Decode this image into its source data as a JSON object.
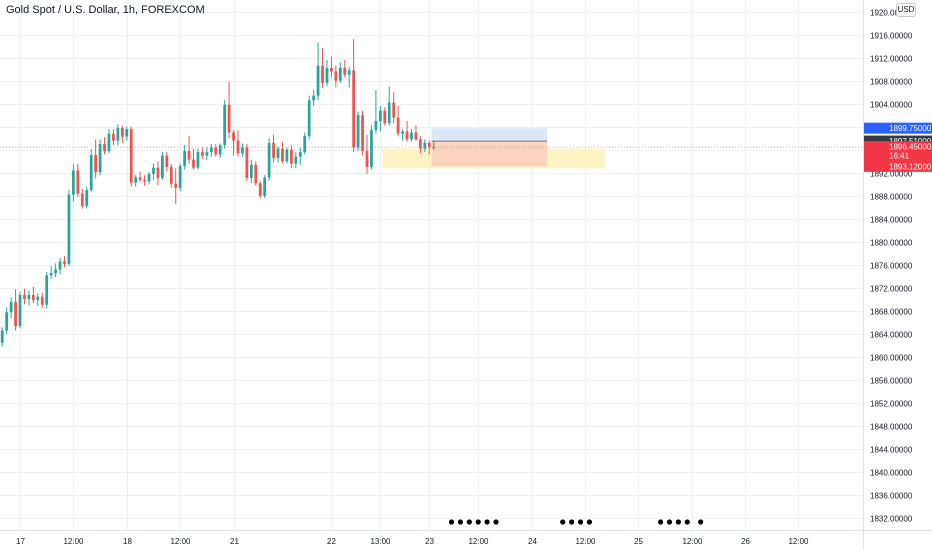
{
  "header": {
    "title": "Gold Spot / U.S. Dollar, 1h, FOREXCOM",
    "currency": "USD"
  },
  "colors": {
    "up": "#26a69a",
    "down": "#ef5350",
    "grid": "#eef0f3",
    "text": "#131722",
    "zone_yellow": "#fff3c4",
    "zone_blue": "#dde7fb",
    "zone_red": "#fbd4bf",
    "label_blue": "#2962ff",
    "label_dark": "#363a45",
    "label_red": "#f23645",
    "event_blue": "#3b6fd8",
    "event_orange": "#f5a623"
  },
  "chart_data": {
    "type": "candlestick",
    "ylim": [
      1830.0,
      1922.0
    ],
    "y_ticks": [
      "1920.00000",
      "1916.00000",
      "1912.00000",
      "1908.00000",
      "1904.00000",
      "1900.00000",
      "1896.00000",
      "1892.00000",
      "1888.00000",
      "1884.00000",
      "1880.00000",
      "1876.00000",
      "1872.00000",
      "1868.00000",
      "1864.00000",
      "1860.00000",
      "1856.00000",
      "1852.00000",
      "1848.00000",
      "1844.00000",
      "1840.00000",
      "1836.00000",
      "1832.00000"
    ],
    "x_ticks": [
      {
        "label": "17",
        "bar": 4
      },
      {
        "label": "12:00",
        "bar": 16
      },
      {
        "label": "18",
        "bar": 28
      },
      {
        "label": "12:00",
        "bar": 40
      },
      {
        "label": "21",
        "bar": 52
      },
      {
        "label": "22",
        "bar": 74
      },
      {
        "label": "13:00",
        "bar": 85
      },
      {
        "label": "23",
        "bar": 96
      },
      {
        "label": "12:00",
        "bar": 107
      },
      {
        "label": "24",
        "bar": 119
      },
      {
        "label": "12:00",
        "bar": 131
      },
      {
        "label": "25",
        "bar": 143
      },
      {
        "label": "12:00",
        "bar": 155
      },
      {
        "label": "26",
        "bar": 167
      },
      {
        "label": "12:00",
        "bar": 179
      }
    ],
    "x_range_bars": [
      -0.5,
      193.5
    ],
    "candles": [
      [
        1862.5,
        1865.2,
        1861.8,
        1864.6
      ],
      [
        1864.6,
        1868.6,
        1864.0,
        1867.8
      ],
      [
        1867.8,
        1870.4,
        1866.8,
        1869.6
      ],
      [
        1869.6,
        1871.8,
        1864.6,
        1865.4
      ],
      [
        1865.4,
        1871.4,
        1865.0,
        1870.8
      ],
      [
        1870.8,
        1871.9,
        1869.2,
        1870.1
      ],
      [
        1870.1,
        1871.6,
        1869.0,
        1870.8
      ],
      [
        1870.8,
        1872.2,
        1869.4,
        1869.9
      ],
      [
        1869.9,
        1871.1,
        1868.9,
        1870.5
      ],
      [
        1870.5,
        1871.2,
        1868.6,
        1869.1
      ],
      [
        1869.1,
        1874.8,
        1868.4,
        1874.2
      ],
      [
        1874.2,
        1875.8,
        1873.6,
        1874.6
      ],
      [
        1874.6,
        1876.3,
        1873.9,
        1875.2
      ],
      [
        1875.2,
        1877.2,
        1874.4,
        1876.6
      ],
      [
        1876.6,
        1877.5,
        1875.6,
        1876.2
      ],
      [
        1876.2,
        1889.0,
        1875.8,
        1888.2
      ],
      [
        1888.2,
        1893.5,
        1887.0,
        1892.4
      ],
      [
        1892.4,
        1893.6,
        1887.8,
        1888.4
      ],
      [
        1888.4,
        1889.2,
        1885.8,
        1886.2
      ],
      [
        1886.2,
        1889.6,
        1885.8,
        1889.0
      ],
      [
        1889.0,
        1896.1,
        1888.6,
        1895.1
      ],
      [
        1895.1,
        1897.8,
        1891.0,
        1892.1
      ],
      [
        1892.1,
        1897.8,
        1891.6,
        1897.0
      ],
      [
        1897.0,
        1898.2,
        1895.2,
        1895.8
      ],
      [
        1895.8,
        1899.6,
        1895.4,
        1898.8
      ],
      [
        1898.8,
        1899.6,
        1896.8,
        1897.6
      ],
      [
        1897.6,
        1900.4,
        1896.8,
        1899.8
      ],
      [
        1899.8,
        1900.2,
        1897.2,
        1898.3
      ],
      [
        1898.3,
        1900.0,
        1897.6,
        1899.6
      ],
      [
        1899.6,
        1900.0,
        1889.6,
        1890.3
      ],
      [
        1890.3,
        1891.6,
        1889.6,
        1891.2
      ],
      [
        1891.2,
        1892.2,
        1890.4,
        1890.8
      ],
      [
        1890.8,
        1891.6,
        1889.8,
        1890.5
      ],
      [
        1890.5,
        1892.2,
        1890.0,
        1891.8
      ],
      [
        1891.8,
        1893.6,
        1890.8,
        1892.9
      ],
      [
        1892.9,
        1894.0,
        1889.9,
        1891.1
      ],
      [
        1891.1,
        1895.6,
        1890.8,
        1895.0
      ],
      [
        1895.0,
        1895.6,
        1892.2,
        1893.0
      ],
      [
        1893.0,
        1893.5,
        1889.4,
        1890.1
      ],
      [
        1890.1,
        1892.8,
        1886.6,
        1889.4
      ],
      [
        1889.4,
        1893.6,
        1888.8,
        1893.2
      ],
      [
        1893.2,
        1896.8,
        1892.6,
        1895.8
      ],
      [
        1895.8,
        1898.4,
        1893.6,
        1894.3
      ],
      [
        1894.3,
        1896.2,
        1892.6,
        1892.9
      ],
      [
        1892.9,
        1896.2,
        1892.6,
        1895.6
      ],
      [
        1895.6,
        1896.4,
        1894.4,
        1895.0
      ],
      [
        1895.0,
        1896.4,
        1894.2,
        1895.6
      ],
      [
        1895.6,
        1897.0,
        1894.8,
        1896.4
      ],
      [
        1896.4,
        1897.0,
        1894.8,
        1895.2
      ],
      [
        1895.2,
        1897.1,
        1894.6,
        1896.8
      ],
      [
        1896.8,
        1904.6,
        1896.2,
        1903.8
      ],
      [
        1903.8,
        1907.8,
        1898.0,
        1899.0
      ],
      [
        1899.0,
        1899.4,
        1895.0,
        1897.6
      ],
      [
        1897.6,
        1899.4,
        1894.8,
        1895.4
      ],
      [
        1895.4,
        1897.1,
        1894.8,
        1896.4
      ],
      [
        1896.4,
        1897.0,
        1890.6,
        1891.1
      ],
      [
        1891.1,
        1894.2,
        1890.2,
        1893.4
      ],
      [
        1893.4,
        1894.0,
        1889.8,
        1890.2
      ],
      [
        1890.2,
        1890.6,
        1887.6,
        1888.0
      ],
      [
        1888.0,
        1891.6,
        1887.6,
        1891.2
      ],
      [
        1891.2,
        1898.0,
        1890.6,
        1897.2
      ],
      [
        1897.2,
        1898.6,
        1893.8,
        1894.6
      ],
      [
        1894.6,
        1896.6,
        1893.8,
        1896.2
      ],
      [
        1896.2,
        1897.4,
        1893.6,
        1894.0
      ],
      [
        1894.0,
        1896.4,
        1893.6,
        1896.0
      ],
      [
        1896.0,
        1896.8,
        1892.8,
        1893.6
      ],
      [
        1893.6,
        1895.6,
        1892.8,
        1894.8
      ],
      [
        1894.8,
        1896.4,
        1893.4,
        1895.6
      ],
      [
        1895.6,
        1899.0,
        1895.2,
        1898.4
      ],
      [
        1898.4,
        1905.4,
        1897.8,
        1904.6
      ],
      [
        1904.6,
        1906.4,
        1903.6,
        1905.4
      ],
      [
        1905.4,
        1914.6,
        1904.6,
        1910.6
      ],
      [
        1910.6,
        1913.6,
        1906.8,
        1907.6
      ],
      [
        1907.6,
        1911.6,
        1907.0,
        1910.2
      ],
      [
        1910.2,
        1912.2,
        1908.6,
        1909.6
      ],
      [
        1909.6,
        1910.6,
        1906.8,
        1908.0
      ],
      [
        1908.0,
        1911.2,
        1907.6,
        1910.2
      ],
      [
        1910.2,
        1911.6,
        1908.6,
        1909.0
      ],
      [
        1909.0,
        1910.4,
        1906.8,
        1909.8
      ],
      [
        1909.8,
        1915.2,
        1895.6,
        1896.4
      ],
      [
        1896.4,
        1902.6,
        1895.8,
        1902.0
      ],
      [
        1902.0,
        1902.8,
        1895.0,
        1895.8
      ],
      [
        1895.8,
        1898.6,
        1891.8,
        1893.0
      ],
      [
        1893.0,
        1900.2,
        1892.6,
        1899.4
      ],
      [
        1899.4,
        1906.4,
        1898.8,
        1901.0
      ],
      [
        1901.0,
        1903.6,
        1899.2,
        1902.8
      ],
      [
        1902.8,
        1903.4,
        1900.2,
        1900.6
      ],
      [
        1900.6,
        1907.0,
        1900.2,
        1904.2
      ],
      [
        1904.2,
        1906.0,
        1900.6,
        1901.6
      ],
      [
        1901.6,
        1903.6,
        1898.4,
        1898.8
      ],
      [
        1898.8,
        1899.6,
        1897.6,
        1899.2
      ],
      [
        1899.2,
        1901.0,
        1897.4,
        1897.8
      ],
      [
        1897.8,
        1899.6,
        1897.4,
        1899.0
      ],
      [
        1899.0,
        1900.2,
        1897.6,
        1897.8
      ],
      [
        1897.8,
        1898.4,
        1895.4,
        1896.2
      ],
      [
        1896.2,
        1897.8,
        1895.6,
        1897.2
      ],
      [
        1897.2,
        1897.6,
        1895.2,
        1896.4
      ],
      [
        1896.4,
        1897.6,
        1896.0,
        1896.45
      ]
    ],
    "zones": [
      {
        "from_bar": 85.5,
        "to_bar": 135.5,
        "y1": 1896.2,
        "y2": 1892.8,
        "fill": "zone_yellow"
      },
      {
        "from_bar": 96.5,
        "to_bar": 122.5,
        "y1": 1899.75,
        "y2": 1897.51,
        "fill": "zone_blue"
      },
      {
        "from_bar": 96.5,
        "to_bar": 122.5,
        "y1": 1897.51,
        "y2": 1893.12,
        "fill": "zone_red"
      }
    ],
    "price_labels": [
      {
        "text": "1899.75000",
        "value": 1899.75,
        "color": "label_blue"
      },
      {
        "text": "1897.51000",
        "value": 1897.51,
        "color": "label_dark"
      },
      {
        "text": "1896.45000",
        "value": 1896.45,
        "color": "label_red",
        "sub": "16:41"
      },
      {
        "text": "1893.12000",
        "value": 1893.12,
        "color": "label_red"
      }
    ],
    "events": [
      {
        "bar": 101,
        "color": "event_blue"
      },
      {
        "bar": 103,
        "color": "event_orange"
      },
      {
        "bar": 105,
        "color": "event_blue"
      },
      {
        "bar": 107,
        "color": "event_blue"
      },
      {
        "bar": 109,
        "color": "event_orange"
      },
      {
        "bar": 111,
        "color": "event_blue"
      },
      {
        "bar": 126,
        "color": "event_blue"
      },
      {
        "bar": 128,
        "color": "event_orange"
      },
      {
        "bar": 130,
        "color": "event_blue"
      },
      {
        "bar": 132,
        "color": "event_orange"
      },
      {
        "bar": 148,
        "color": "event_blue"
      },
      {
        "bar": 150,
        "color": "event_orange"
      },
      {
        "bar": 152,
        "color": "event_blue"
      },
      {
        "bar": 154,
        "color": "event_orange"
      },
      {
        "bar": 157,
        "color": "event_blue"
      }
    ]
  }
}
